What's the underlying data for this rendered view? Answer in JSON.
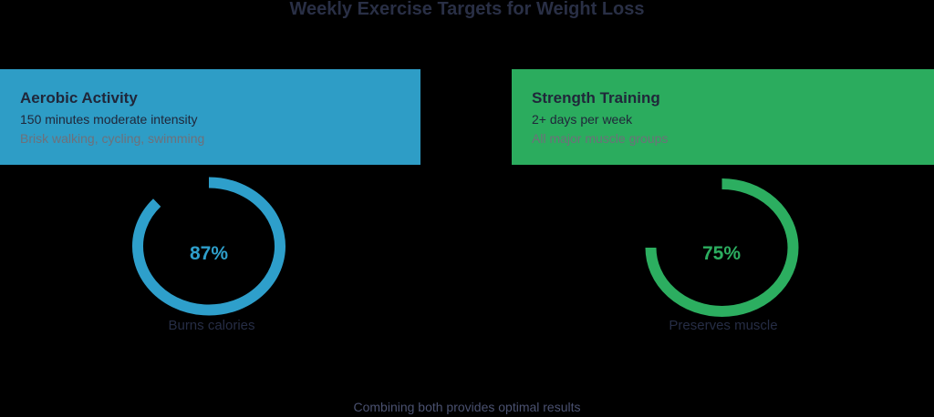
{
  "title": "Weekly Exercise Targets for Weight Loss",
  "footer_note": "Combining both provides optimal results",
  "cards": [
    {
      "name": "Aerobic Activity",
      "line1": "150 minutes moderate intensity",
      "line2": "Brisk walking, cycling, swimming",
      "header_color": "#2E9DC6",
      "ring_color": "#2E9FCB",
      "muted_color": "#6e707a",
      "percent_label": "87%",
      "percent_value": 87,
      "caption": "Burns calories"
    },
    {
      "name": "Strength Training",
      "line1": "2+ days per week",
      "line2": "All major muscle groups",
      "header_color": "#2BAC5E",
      "ring_color": "#2CAE60",
      "muted_color": "#6e707a",
      "percent_label": "75%",
      "percent_value": 75,
      "caption": "Preserves muscle"
    }
  ],
  "chart_data": {
    "type": "donut",
    "title": "Weekly Exercise Targets for Weight Loss",
    "series": [
      {
        "name": "Aerobic Activity",
        "value": 87,
        "unit": "%",
        "color": "#2E9FCB",
        "caption": "Burns calories"
      },
      {
        "name": "Strength Training",
        "value": 75,
        "unit": "%",
        "color": "#2CAE60",
        "caption": "Preserves muscle"
      }
    ],
    "annotation": "Combining both provides optimal results"
  }
}
